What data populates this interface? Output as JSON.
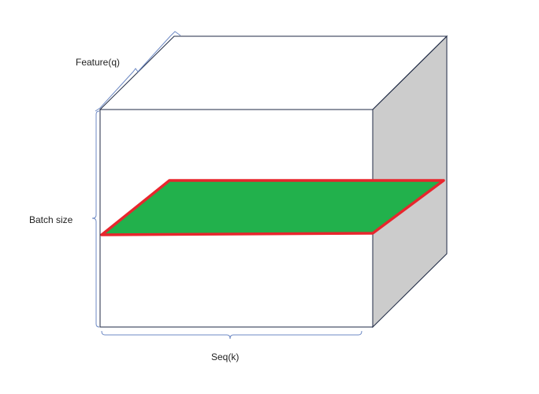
{
  "labels": {
    "feature": "Feature(q)",
    "batch": "Batch size",
    "seq": "Seq(k)"
  },
  "colors": {
    "edge": "#1f2a44",
    "side_face": "#cccccc",
    "slice_fill": "#22b14c",
    "slice_border": "#e8262d",
    "brace": "#6d89c4"
  }
}
